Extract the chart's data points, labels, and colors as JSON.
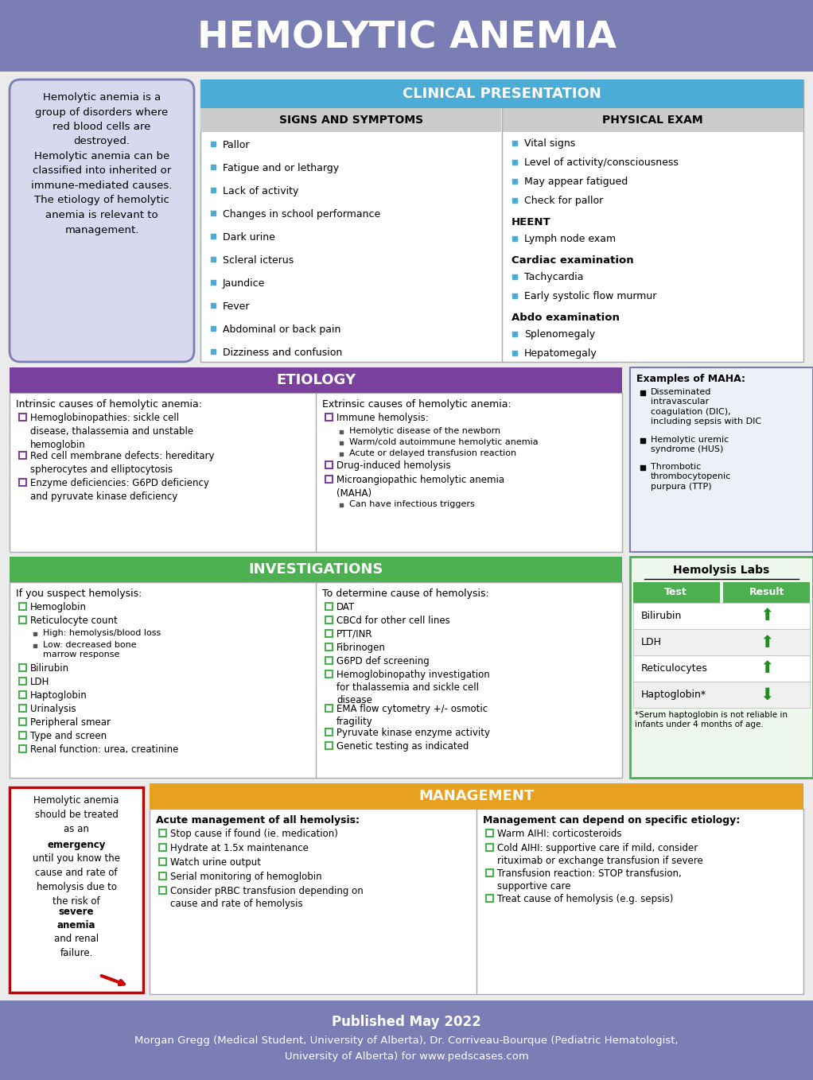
{
  "title": "HEMOLYTIC ANEMIA",
  "title_bg": "#7B7DB5",
  "title_color": "white",
  "footer_bg": "#7B7DB5",
  "footer_color": "white",
  "footer_line1": "Published May 2022",
  "footer_line2": "Morgan Gregg (Medical Student, University of Alberta), Dr. Corriveau-Bourque (Pediatric Hematologist,",
  "footer_line3": "University of Alberta) for www.pedscases.com",
  "intro_text": "Hemolytic anemia is a\ngroup of disorders where\nred blood cells are\ndestroyed.\nHemolytic anemia can be\nclassified into inherited or\nimmune-mediated causes.\nThe etiology of hemolytic\nanemia is relevant to\nmanagement.",
  "intro_bg": "#D8D8EE",
  "intro_border": "#7B7DB5",
  "clinical_header": "CLINICAL PRESENTATION",
  "clinical_header_bg": "#4BACD6",
  "clinical_col1_header": "SIGNS AND SYMPTOMS",
  "clinical_col2_header": "PHYSICAL EXAM",
  "signs_symptoms": [
    "Pallor",
    "Fatigue and or lethargy",
    "Lack of activity",
    "Changes in school performance",
    "Dark urine",
    "Scleral icterus",
    "Jaundice",
    "Fever",
    "Abdominal or back pain",
    "Dizziness and confusion"
  ],
  "physical_exam": [
    {
      "type": "bullet",
      "text": "Vital signs"
    },
    {
      "type": "bullet",
      "text": "Level of activity/consciousness"
    },
    {
      "type": "bullet",
      "text": "May appear fatigued"
    },
    {
      "type": "bullet",
      "text": "Check for pallor"
    },
    {
      "type": "header",
      "text": "HEENT"
    },
    {
      "type": "bullet",
      "text": "Lymph node exam"
    },
    {
      "type": "header",
      "text": "Cardiac examination"
    },
    {
      "type": "bullet",
      "text": "Tachycardia"
    },
    {
      "type": "bullet",
      "text": "Early systolic flow murmur"
    },
    {
      "type": "header",
      "text": "Abdo examination"
    },
    {
      "type": "bullet",
      "text": "Splenomegaly"
    },
    {
      "type": "bullet",
      "text": "Hepatomegaly"
    }
  ],
  "etiology_header": "ETIOLOGY",
  "etiology_bg": "#7B3F9E",
  "intrinsic_title": "Intrinsic causes of hemolytic anemia:",
  "intrinsic_items": [
    "Hemoglobinopathies: sickle cell\ndisease, thalassemia and unstable\nhemoglobin",
    "Red cell membrane defects: hereditary\nspherocytes and elliptocytosis",
    "Enzyme deficiencies: G6PD deficiency\nand pyruvate kinase deficiency"
  ],
  "extrinsic_title": "Extrinsic causes of hemolytic anemia:",
  "extrinsic_items": [
    {
      "type": "main",
      "text": "Immune hemolysis:"
    },
    {
      "type": "sub",
      "text": "Hemolytic disease of the newborn"
    },
    {
      "type": "sub",
      "text": "Warm/cold autoimmune hemolytic anemia"
    },
    {
      "type": "sub",
      "text": "Acute or delayed transfusion reaction"
    },
    {
      "type": "main",
      "text": "Drug-induced hemolysis"
    },
    {
      "type": "main",
      "text": "Microangiopathic hemolytic anemia\n(MAHA)"
    },
    {
      "type": "sub",
      "text": "Can have infectious triggers"
    }
  ],
  "maha_title": "Examples of MAHA:",
  "maha_bg": "#EEF0F8",
  "maha_border": "#7B7DB5",
  "maha_items": [
    "Disseminated\nintravascular\ncoagulation (DIC),\nincluding sepsis with DIC",
    "Hemolytic uremic\nsyndrome (HUS)",
    "Thrombotic\nthrombocytopenic\npurpura (TTP)"
  ],
  "investigations_header": "INVESTIGATIONS",
  "investigations_bg": "#4CAF50",
  "suspect_title": "If you suspect hemolysis:",
  "suspect_items": [
    {
      "type": "main",
      "text": "Hemoglobin"
    },
    {
      "type": "main",
      "text": "Reticulocyte count"
    },
    {
      "type": "sub",
      "text": "High: hemolysis/blood loss"
    },
    {
      "type": "sub",
      "text": "Low: decreased bone\nmarrow response"
    },
    {
      "type": "main",
      "text": "Bilirubin"
    },
    {
      "type": "main",
      "text": "LDH"
    },
    {
      "type": "main",
      "text": "Haptoglobin"
    },
    {
      "type": "main",
      "text": "Urinalysis"
    },
    {
      "type": "main",
      "text": "Peripheral smear"
    },
    {
      "type": "main",
      "text": "Type and screen"
    },
    {
      "type": "main",
      "text": "Renal function: urea, creatinine"
    }
  ],
  "determine_title": "To determine cause of hemolysis:",
  "determine_items": [
    "DAT",
    "CBCd for other cell lines",
    "PTT/INR",
    "Fibrinogen",
    "G6PD def screening",
    "Hemoglobinopathy investigation\nfor thalassemia and sickle cell\ndisease",
    "EMA flow cytometry +/- osmotic\nfragility",
    "Pyruvate kinase enzyme activity",
    "Genetic testing as indicated"
  ],
  "hemo_labs_title": "Hemolysis Labs",
  "hemo_labs_bg": "#EEF8EE",
  "hemo_labs_border": "#4CAF50",
  "hemo_labs_col1": "Test",
  "hemo_labs_col2": "Result",
  "hemo_labs_col_bg": "#4CAF50",
  "hemo_labs_rows": [
    {
      "test": "Bilirubin",
      "direction": "up"
    },
    {
      "test": "LDH",
      "direction": "up"
    },
    {
      "test": "Reticulocytes",
      "direction": "up"
    },
    {
      "test": "Haptoglobin*",
      "direction": "down"
    }
  ],
  "hemo_labs_note": "*Serum haptoglobin is not reliable in\ninfants under 4 months of age.",
  "management_header": "MANAGEMENT",
  "management_bg": "#E8A020",
  "emergency_box_border": "#CC0000",
  "acute_title": "Acute management of all hemolysis:",
  "acute_items": [
    "Stop cause if found (ie. medication)",
    "Hydrate at 1.5x maintenance",
    "Watch urine output",
    "Serial monitoring of hemoglobin",
    "Consider pRBC transfusion depending on\ncause and rate of hemolysis"
  ],
  "specific_title": "Management can depend on specific etiology:",
  "specific_items": [
    "Warm AIHI: corticosteroids",
    "Cold AIHI: supportive care if mild, consider\nrituximab or exchange transfusion if severe",
    "Transfusion reaction: STOP transfusion,\nsupportive care",
    "Treat cause of hemolysis (e.g. sepsis)"
  ],
  "bullet_color_blue": "#4BACD6",
  "checkbox_color_purple": "#7B3F9E",
  "checkbox_color_green": "#4CAF50"
}
